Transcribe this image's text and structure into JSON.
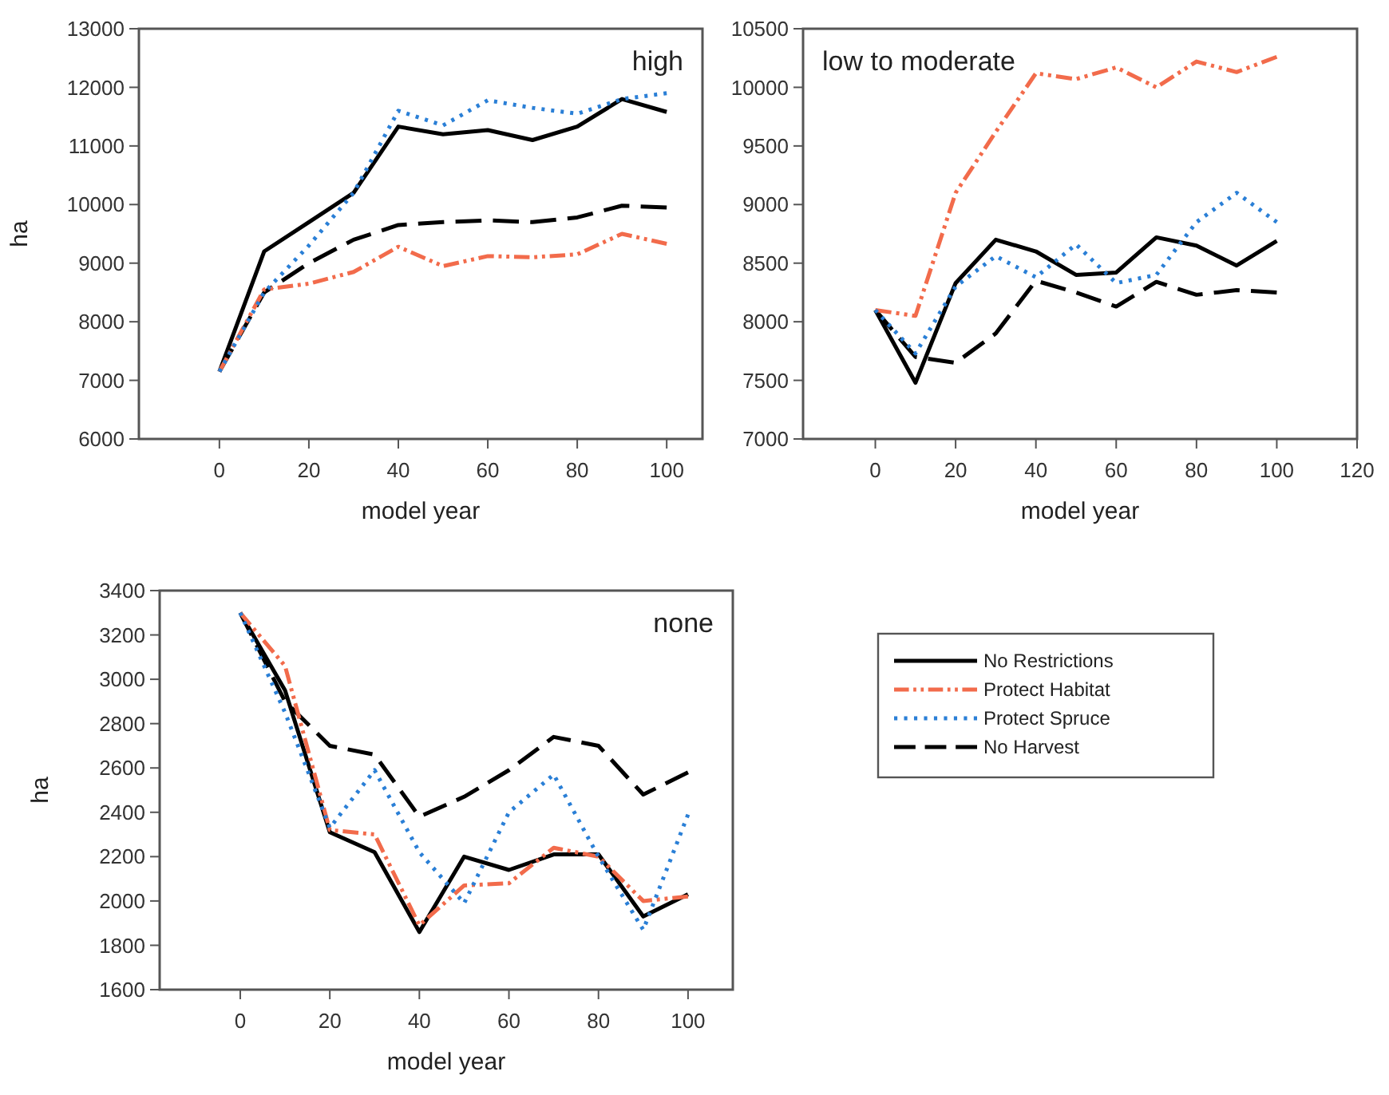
{
  "chart_data": [
    {
      "type": "line",
      "ylabel": "ha",
      "xlabel": "model year",
      "annotations": [
        "high"
      ],
      "x": [
        0,
        10,
        20,
        30,
        40,
        50,
        60,
        70,
        80,
        90,
        100
      ],
      "xlim": [
        -18,
        108
      ],
      "xticks": [
        0,
        20,
        40,
        60,
        80,
        100
      ],
      "ylim": [
        6000,
        13000
      ],
      "yticks": [
        6000,
        7000,
        8000,
        9000,
        10000,
        11000,
        12000,
        13000
      ],
      "grid": false,
      "legend": false,
      "series": [
        {
          "color": "#000000",
          "line_style": "solid",
          "values": [
            7150,
            9200,
            9700,
            10200,
            11330,
            11200,
            11270,
            11100,
            11330,
            11800,
            11580
          ]
        },
        {
          "color": "#f26b4b",
          "line_style": "dashdot",
          "values": [
            7150,
            8550,
            8650,
            8850,
            9280,
            8950,
            9120,
            9100,
            9150,
            9500,
            9330
          ]
        },
        {
          "color": "#2a7fd6",
          "line_style": "dotted",
          "values": [
            7150,
            8500,
            9300,
            10200,
            11600,
            11350,
            11780,
            11650,
            11550,
            11800,
            11900
          ]
        },
        {
          "color": "#000000",
          "line_style": "dashed",
          "values": [
            7150,
            8500,
            9000,
            9400,
            9650,
            9700,
            9730,
            9700,
            9780,
            9980,
            9950
          ]
        }
      ]
    },
    {
      "type": "line",
      "xlabel": "model year",
      "annotations": [
        "low to moderate"
      ],
      "x": [
        0,
        10,
        20,
        30,
        40,
        50,
        60,
        70,
        80,
        90,
        100
      ],
      "xlim": [
        -18,
        120
      ],
      "xticks": [
        0,
        20,
        40,
        60,
        80,
        100,
        120
      ],
      "ylim": [
        7000,
        10500
      ],
      "yticks": [
        7000,
        7500,
        8000,
        8500,
        9000,
        9500,
        10000,
        10500
      ],
      "grid": false,
      "legend": false,
      "series": [
        {
          "color": "#000000",
          "line_style": "solid",
          "values": [
            8100,
            7480,
            8330,
            8700,
            8600,
            8400,
            8420,
            8720,
            8650,
            8480,
            8690
          ]
        },
        {
          "color": "#f26b4b",
          "line_style": "dashdot",
          "values": [
            8100,
            8050,
            9100,
            9620,
            10120,
            10070,
            10170,
            10000,
            10220,
            10130,
            10260
          ]
        },
        {
          "color": "#2a7fd6",
          "line_style": "dotted",
          "values": [
            8100,
            7730,
            8300,
            8560,
            8380,
            8660,
            8330,
            8400,
            8850,
            9100,
            8850
          ]
        },
        {
          "color": "#000000",
          "line_style": "dashed",
          "values": [
            8100,
            7700,
            7650,
            7900,
            8350,
            8250,
            8130,
            8340,
            8230,
            8270,
            8250
          ]
        }
      ]
    },
    {
      "type": "line",
      "ylabel": "ha",
      "xlabel": "model year",
      "annotations": [
        "none"
      ],
      "x": [
        0,
        10,
        20,
        30,
        40,
        50,
        60,
        70,
        80,
        90,
        100
      ],
      "xlim": [
        -18,
        110
      ],
      "xticks": [
        0,
        20,
        40,
        60,
        80,
        100
      ],
      "ylim": [
        1600,
        3400
      ],
      "yticks": [
        1600,
        1800,
        2000,
        2200,
        2400,
        2600,
        2800,
        3000,
        3200,
        3400
      ],
      "grid": false,
      "legend": "right",
      "series": [
        {
          "name": "No Restrictions",
          "color": "#000000",
          "line_style": "solid",
          "values": [
            3300,
            2950,
            2310,
            2220,
            1860,
            2200,
            2140,
            2210,
            2210,
            1930,
            2030
          ]
        },
        {
          "name": "Protect Habitat",
          "color": "#f26b4b",
          "line_style": "dashdot",
          "values": [
            3300,
            3060,
            2320,
            2300,
            1890,
            2070,
            2080,
            2240,
            2200,
            2000,
            2020
          ]
        },
        {
          "name": "Protect Spruce",
          "color": "#2a7fd6",
          "line_style": "dotted",
          "values": [
            3300,
            2850,
            2330,
            2590,
            2220,
            1990,
            2400,
            2570,
            2200,
            1870,
            2390
          ]
        },
        {
          "name": "No Harvest",
          "color": "#000000",
          "line_style": "dashed",
          "values": [
            3300,
            2900,
            2700,
            2660,
            2380,
            2470,
            2590,
            2740,
            2700,
            2480,
            2580
          ]
        }
      ]
    }
  ]
}
